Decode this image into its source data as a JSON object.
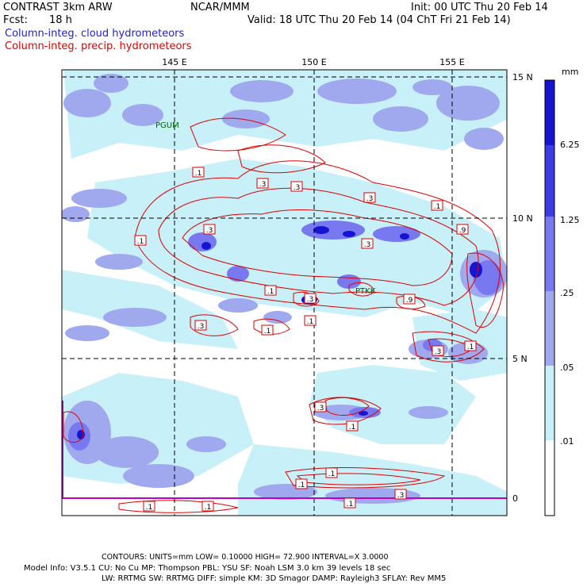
{
  "header": {
    "model": "CONTRAST  3km ARW",
    "center": "NCAR/MMM",
    "init": "Init: 00 UTC Thu 20 Feb 14",
    "fcst_label": "Fcst:",
    "fcst_value": "18 h",
    "valid": "Valid: 18 UTC Thu 20 Feb 14 (04 ChT Fri 21 Feb 14)",
    "field1": "Column-integ. cloud hydrometeors",
    "field2": "Column-integ. precip. hydrometeors"
  },
  "map": {
    "lon_labels": [
      "145 E",
      "150 E",
      "155 E"
    ],
    "lat_labels": [
      "15 N",
      "10 N",
      "5 N",
      "0"
    ],
    "stations": [
      "PGUM",
      "PTKK"
    ],
    "contour_labels": [
      ".1",
      ".3",
      ".3",
      ".3",
      ".1",
      ".3",
      ".1",
      ".3",
      ".9",
      ".1",
      ".3",
      ".1",
      ".9",
      ".1",
      ".3",
      ".1",
      ".3",
      ".3",
      ".1",
      ".1",
      ".1",
      ".3",
      ".1",
      ".1",
      ".1"
    ]
  },
  "colorbar": {
    "unit": "mm",
    "labels": [
      "6.25",
      "1.25",
      ".25",
      ".05",
      ".01"
    ],
    "colors": [
      "#1414d2",
      "#3c3ce6",
      "#7878f0",
      "#a0a8ee",
      "#c8f0f8",
      "#ffffff"
    ]
  },
  "footer": {
    "contours": "CONTOURS:  UNITS=mm  LOW= 0.10000      HIGH= 72.900      INTERVAL=X  3.0000",
    "model_info_1": "Model Info: V3.5.1     CU: No Cu      MP: Thompson     PBL: YSU       SF: Noah LSM     3.0 km   39 levels    18 sec",
    "model_info_2": "LW: RRTMG    SW: RRTMG   DIFF: simple KM: 3D Smagor DAMP: Rayleigh3  SFLAY: Rev MM5"
  }
}
